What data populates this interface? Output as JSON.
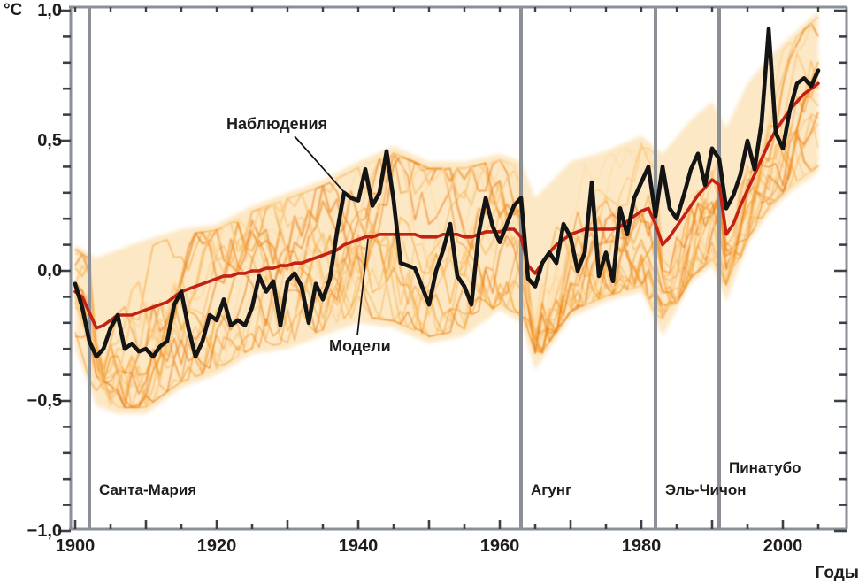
{
  "chart_data": {
    "type": "line",
    "title": "",
    "ylabel": "°C",
    "xlabel": "Годы",
    "grid": false,
    "legend": "inline-annotations",
    "x_axis": {
      "min": 1900,
      "max": 2008,
      "minor_tick_step": 5,
      "major_ticks": [
        {
          "year": 1900,
          "label": "1900"
        },
        {
          "year": 1920,
          "label": "1920"
        },
        {
          "year": 1940,
          "label": "1940"
        },
        {
          "year": 1960,
          "label": "1960"
        },
        {
          "year": 1980,
          "label": "1980"
        },
        {
          "year": 2000,
          "label": "2000"
        }
      ]
    },
    "y_axis": {
      "min": -1.0,
      "max": 1.0,
      "minor_tick_step": 0.1,
      "major_ticks": [
        {
          "value": 1.0,
          "label": "1,0"
        },
        {
          "value": 0.5,
          "label": "0,5"
        },
        {
          "value": 0.0,
          "label": "0,0"
        },
        {
          "value": -0.5,
          "label": "−0,5"
        },
        {
          "value": -1.0,
          "label": "−1,0"
        }
      ]
    },
    "annotations": {
      "observations": {
        "label": "Наблюдения"
      },
      "models": {
        "label": "Модели"
      }
    },
    "volcanoes": [
      {
        "label": "Санта-Мария",
        "year": 1902
      },
      {
        "label": "Агунг",
        "year": 1963
      },
      {
        "label": "Эль-Чичон",
        "year": 1982
      },
      {
        "label": "Пинатубо",
        "year": 1991
      }
    ],
    "colors": {
      "observations": "#141414",
      "model_mean": "#c22114",
      "ensemble_band": "#fbdba6",
      "ensemble_palette": [
        "#f6a028",
        "#ef8410",
        "#fbc271",
        "#f3b14e",
        "#e97a0d",
        "#fdd79a"
      ],
      "axis": "#8a9096",
      "tick": "#3d4145",
      "text": "#1c1c1c"
    },
    "series": {
      "years_start": 1900,
      "observations": {
        "label": "Наблюдения",
        "values": [
          -0.05,
          -0.14,
          -0.27,
          -0.33,
          -0.3,
          -0.22,
          -0.17,
          -0.3,
          -0.28,
          -0.31,
          -0.3,
          -0.33,
          -0.29,
          -0.27,
          -0.13,
          -0.08,
          -0.22,
          -0.33,
          -0.27,
          -0.17,
          -0.19,
          -0.11,
          -0.21,
          -0.19,
          -0.21,
          -0.14,
          -0.02,
          -0.08,
          -0.04,
          -0.21,
          -0.04,
          -0.01,
          -0.06,
          -0.2,
          -0.05,
          -0.11,
          -0.03,
          0.15,
          0.3,
          0.28,
          0.27,
          0.39,
          0.25,
          0.3,
          0.46,
          0.27,
          0.03,
          0.02,
          0.01,
          -0.06,
          -0.13,
          0.0,
          0.08,
          0.18,
          -0.02,
          -0.06,
          -0.13,
          0.14,
          0.28,
          0.17,
          0.11,
          0.18,
          0.25,
          0.28,
          -0.03,
          -0.06,
          0.03,
          0.07,
          0.03,
          0.18,
          0.13,
          0.0,
          0.07,
          0.34,
          -0.02,
          0.07,
          -0.04,
          0.24,
          0.14,
          0.28,
          0.34,
          0.4,
          0.21,
          0.4,
          0.24,
          0.2,
          0.29,
          0.39,
          0.45,
          0.33,
          0.47,
          0.43,
          0.24,
          0.29,
          0.37,
          0.5,
          0.39,
          0.57,
          0.93,
          0.53,
          0.47,
          0.62,
          0.72,
          0.74,
          0.71,
          0.77
        ]
      },
      "model_mean": {
        "label": "Модели",
        "values": [
          -0.08,
          -0.1,
          -0.16,
          -0.22,
          -0.21,
          -0.19,
          -0.17,
          -0.17,
          -0.17,
          -0.16,
          -0.15,
          -0.14,
          -0.13,
          -0.12,
          -0.1,
          -0.08,
          -0.07,
          -0.06,
          -0.05,
          -0.04,
          -0.03,
          -0.02,
          -0.02,
          -0.01,
          -0.01,
          0.0,
          0.0,
          0.01,
          0.01,
          0.02,
          0.02,
          0.03,
          0.03,
          0.04,
          0.05,
          0.06,
          0.07,
          0.08,
          0.1,
          0.11,
          0.12,
          0.13,
          0.13,
          0.14,
          0.14,
          0.14,
          0.14,
          0.14,
          0.14,
          0.13,
          0.13,
          0.13,
          0.14,
          0.14,
          0.14,
          0.13,
          0.13,
          0.14,
          0.15,
          0.15,
          0.15,
          0.16,
          0.16,
          0.13,
          0.02,
          -0.01,
          0.03,
          0.07,
          0.1,
          0.12,
          0.14,
          0.15,
          0.16,
          0.16,
          0.16,
          0.16,
          0.16,
          0.17,
          0.19,
          0.21,
          0.23,
          0.24,
          0.18,
          0.1,
          0.13,
          0.17,
          0.21,
          0.25,
          0.29,
          0.32,
          0.35,
          0.33,
          0.14,
          0.18,
          0.25,
          0.31,
          0.37,
          0.43,
          0.49,
          0.54,
          0.58,
          0.62,
          0.65,
          0.68,
          0.7,
          0.72
        ]
      },
      "model_envelope": {
        "label": "model-ensemble-spread",
        "anchors": [
          {
            "year": 1900,
            "min": -0.3,
            "max": 0.1
          },
          {
            "year": 1903,
            "min": -0.52,
            "max": 0.05
          },
          {
            "year": 1906,
            "min": -0.55,
            "max": 0.08
          },
          {
            "year": 1910,
            "min": -0.55,
            "max": 0.12
          },
          {
            "year": 1915,
            "min": -0.45,
            "max": 0.16
          },
          {
            "year": 1920,
            "min": -0.4,
            "max": 0.18
          },
          {
            "year": 1925,
            "min": -0.32,
            "max": 0.25
          },
          {
            "year": 1930,
            "min": -0.3,
            "max": 0.3
          },
          {
            "year": 1935,
            "min": -0.25,
            "max": 0.35
          },
          {
            "year": 1940,
            "min": -0.2,
            "max": 0.42
          },
          {
            "year": 1945,
            "min": -0.22,
            "max": 0.48
          },
          {
            "year": 1950,
            "min": -0.28,
            "max": 0.42
          },
          {
            "year": 1955,
            "min": -0.25,
            "max": 0.42
          },
          {
            "year": 1960,
            "min": -0.15,
            "max": 0.45
          },
          {
            "year": 1963,
            "min": -0.2,
            "max": 0.42
          },
          {
            "year": 1965,
            "min": -0.38,
            "max": 0.28
          },
          {
            "year": 1970,
            "min": -0.18,
            "max": 0.42
          },
          {
            "year": 1975,
            "min": -0.12,
            "max": 0.46
          },
          {
            "year": 1980,
            "min": -0.08,
            "max": 0.52
          },
          {
            "year": 1983,
            "min": -0.25,
            "max": 0.45
          },
          {
            "year": 1987,
            "min": -0.05,
            "max": 0.58
          },
          {
            "year": 1990,
            "min": 0.02,
            "max": 0.65
          },
          {
            "year": 1992,
            "min": -0.12,
            "max": 0.55
          },
          {
            "year": 1995,
            "min": 0.1,
            "max": 0.72
          },
          {
            "year": 1998,
            "min": 0.22,
            "max": 0.82
          },
          {
            "year": 2001,
            "min": 0.3,
            "max": 0.9
          },
          {
            "year": 2005,
            "min": 0.38,
            "max": 1.0
          }
        ]
      }
    }
  }
}
